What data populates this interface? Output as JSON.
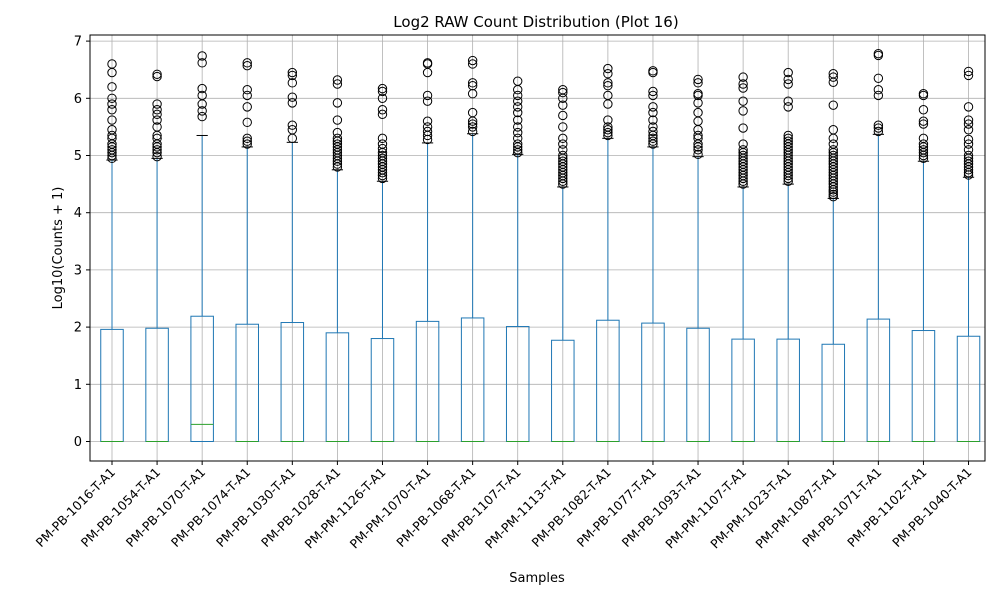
{
  "chart_data": {
    "type": "box",
    "title": "Log2 RAW Count Distribution (Plot 16)",
    "xlabel": "Samples",
    "ylabel": "Log10(Counts + 1)",
    "ylim": [
      -0.35,
      7.1
    ],
    "yticks": [
      0,
      1,
      2,
      3,
      4,
      5,
      6,
      7
    ],
    "grid": true,
    "categories": [
      "PM-PB-1016-T-A1",
      "PM-PB-1054-T-A1",
      "PM-PB-1070-T-A1",
      "PM-PB-1074-T-A1",
      "PM-PB-1030-T-A1",
      "PM-PB-1028-T-A1",
      "PM-PM-1126-T-A1",
      "PM-PM-1070-T-A1",
      "PM-PB-1068-T-A1",
      "PM-PB-1107-T-A1",
      "PM-PM-1113-T-A1",
      "PM-PB-1082-T-A1",
      "PM-PB-1077-T-A1",
      "PM-PB-1093-T-A1",
      "PM-PM-1107-T-A1",
      "PM-PM-1023-T-A1",
      "PM-PM-1087-T-A1",
      "PM-PB-1071-T-A1",
      "PM-PB-1102-T-A1",
      "PM-PB-1040-T-A1"
    ],
    "boxes": [
      {
        "min": 0,
        "q1": 0,
        "median": 0,
        "q3": 1.96,
        "whisker_high": 4.92,
        "fliers": [
          4.95,
          5.0,
          5.05,
          5.1,
          5.15,
          5.2,
          5.3,
          5.35,
          5.45,
          5.62,
          5.8,
          5.9,
          6.0,
          6.2,
          6.45,
          6.6
        ]
      },
      {
        "min": 0,
        "q1": 0,
        "median": 0,
        "q3": 1.98,
        "whisker_high": 4.95,
        "fliers": [
          4.98,
          5.05,
          5.1,
          5.15,
          5.2,
          5.3,
          5.35,
          5.5,
          5.62,
          5.72,
          5.8,
          5.9,
          6.38,
          6.42
        ]
      },
      {
        "min": 0,
        "q1": 0,
        "median": 0.3,
        "q3": 2.19,
        "whisker_high": 5.35,
        "fliers": [
          5.68,
          5.78,
          5.9,
          6.05,
          6.17,
          6.62,
          6.74
        ]
      },
      {
        "min": 0,
        "q1": 0,
        "median": 0,
        "q3": 2.05,
        "whisker_high": 5.15,
        "fliers": [
          5.2,
          5.25,
          5.3,
          5.58,
          5.85,
          6.05,
          6.15,
          6.57,
          6.62
        ]
      },
      {
        "min": 0,
        "q1": 0,
        "median": 0,
        "q3": 2.08,
        "whisker_high": 5.23,
        "fliers": [
          5.3,
          5.45,
          5.53,
          5.92,
          6.02,
          6.27,
          6.4,
          6.45
        ]
      },
      {
        "min": 0,
        "q1": 0,
        "median": 0,
        "q3": 1.9,
        "whisker_high": 4.75,
        "fliers": [
          4.8,
          4.85,
          4.9,
          4.95,
          5.0,
          5.05,
          5.1,
          5.15,
          5.2,
          5.25,
          5.3,
          5.4,
          5.62,
          5.92,
          6.25,
          6.32
        ]
      },
      {
        "min": 0,
        "q1": 0,
        "median": 0,
        "q3": 1.8,
        "whisker_high": 4.55,
        "fliers": [
          4.6,
          4.65,
          4.7,
          4.75,
          4.8,
          4.85,
          4.9,
          4.95,
          5.0,
          5.05,
          5.12,
          5.2,
          5.3,
          5.72,
          5.8,
          6.0,
          6.12,
          6.17
        ]
      },
      {
        "min": 0,
        "q1": 0,
        "median": 0,
        "q3": 2.1,
        "whisker_high": 5.22,
        "fliers": [
          5.28,
          5.35,
          5.42,
          5.5,
          5.6,
          5.95,
          6.05,
          6.45,
          6.6,
          6.62
        ]
      },
      {
        "min": 0,
        "q1": 0,
        "median": 0,
        "q3": 2.16,
        "whisker_high": 5.38,
        "fliers": [
          5.42,
          5.5,
          5.55,
          5.6,
          5.75,
          6.08,
          6.22,
          6.27,
          6.6,
          6.66
        ]
      },
      {
        "min": 0,
        "q1": 0,
        "median": 0,
        "q3": 2.01,
        "whisker_high": 5.02,
        "fliers": [
          5.05,
          5.1,
          5.15,
          5.2,
          5.3,
          5.4,
          5.5,
          5.62,
          5.75,
          5.85,
          5.95,
          6.05,
          6.15,
          6.3
        ]
      },
      {
        "min": 0,
        "q1": 0,
        "median": 0,
        "q3": 1.77,
        "whisker_high": 4.45,
        "fliers": [
          4.5,
          4.55,
          4.6,
          4.65,
          4.7,
          4.75,
          4.8,
          4.85,
          4.9,
          4.95,
          5.0,
          5.1,
          5.2,
          5.3,
          5.5,
          5.7,
          5.88,
          6.0,
          6.1,
          6.15
        ]
      },
      {
        "min": 0,
        "q1": 0,
        "median": 0,
        "q3": 2.12,
        "whisker_high": 5.3,
        "fliers": [
          5.35,
          5.4,
          5.45,
          5.5,
          5.62,
          5.9,
          6.05,
          6.22,
          6.27,
          6.43,
          6.52
        ]
      },
      {
        "min": 0,
        "q1": 0,
        "median": 0,
        "q3": 2.07,
        "whisker_high": 5.15,
        "fliers": [
          5.2,
          5.25,
          5.3,
          5.35,
          5.42,
          5.5,
          5.62,
          5.75,
          5.85,
          6.05,
          6.12,
          6.45,
          6.48
        ]
      },
      {
        "min": 0,
        "q1": 0,
        "median": 0,
        "q3": 1.98,
        "whisker_high": 4.98,
        "fliers": [
          5.02,
          5.1,
          5.15,
          5.2,
          5.3,
          5.35,
          5.45,
          5.6,
          5.75,
          5.92,
          6.05,
          6.08,
          6.27,
          6.33
        ]
      },
      {
        "min": 0,
        "q1": 0,
        "median": 0,
        "q3": 1.79,
        "whisker_high": 4.45,
        "fliers": [
          4.5,
          4.55,
          4.6,
          4.65,
          4.7,
          4.75,
          4.8,
          4.85,
          4.9,
          4.95,
          5.0,
          5.05,
          5.1,
          5.2,
          5.48,
          5.78,
          5.95,
          6.18,
          6.25,
          6.37
        ]
      },
      {
        "min": 0,
        "q1": 0,
        "median": 0,
        "q3": 1.79,
        "whisker_high": 4.5,
        "fliers": [
          4.55,
          4.6,
          4.65,
          4.7,
          4.75,
          4.8,
          4.85,
          4.9,
          4.95,
          5.0,
          5.05,
          5.1,
          5.15,
          5.2,
          5.25,
          5.3,
          5.35,
          5.85,
          5.95,
          6.25,
          6.33,
          6.45
        ]
      },
      {
        "min": 0,
        "q1": 0,
        "median": 0,
        "q3": 1.7,
        "whisker_high": 4.25,
        "fliers": [
          4.28,
          4.32,
          4.36,
          4.4,
          4.45,
          4.5,
          4.55,
          4.6,
          4.65,
          4.7,
          4.75,
          4.8,
          4.85,
          4.9,
          4.95,
          5.0,
          5.05,
          5.1,
          5.2,
          5.3,
          5.45,
          5.88,
          6.28,
          6.37,
          6.43
        ]
      },
      {
        "min": 0,
        "q1": 0,
        "median": 0,
        "q3": 2.14,
        "whisker_high": 5.37,
        "fliers": [
          5.42,
          5.48,
          5.53,
          6.05,
          6.15,
          6.35,
          6.75,
          6.78
        ]
      },
      {
        "min": 0,
        "q1": 0,
        "median": 0,
        "q3": 1.94,
        "whisker_high": 4.9,
        "fliers": [
          4.95,
          5.0,
          5.05,
          5.1,
          5.15,
          5.2,
          5.3,
          5.55,
          5.6,
          5.8,
          6.05,
          6.08
        ]
      },
      {
        "min": 0,
        "q1": 0,
        "median": 0,
        "q3": 1.84,
        "whisker_high": 4.62,
        "fliers": [
          4.66,
          4.7,
          4.75,
          4.8,
          4.85,
          4.9,
          4.95,
          5.0,
          5.1,
          5.2,
          5.28,
          5.45,
          5.55,
          5.62,
          5.85,
          6.4,
          6.47
        ]
      }
    ]
  }
}
